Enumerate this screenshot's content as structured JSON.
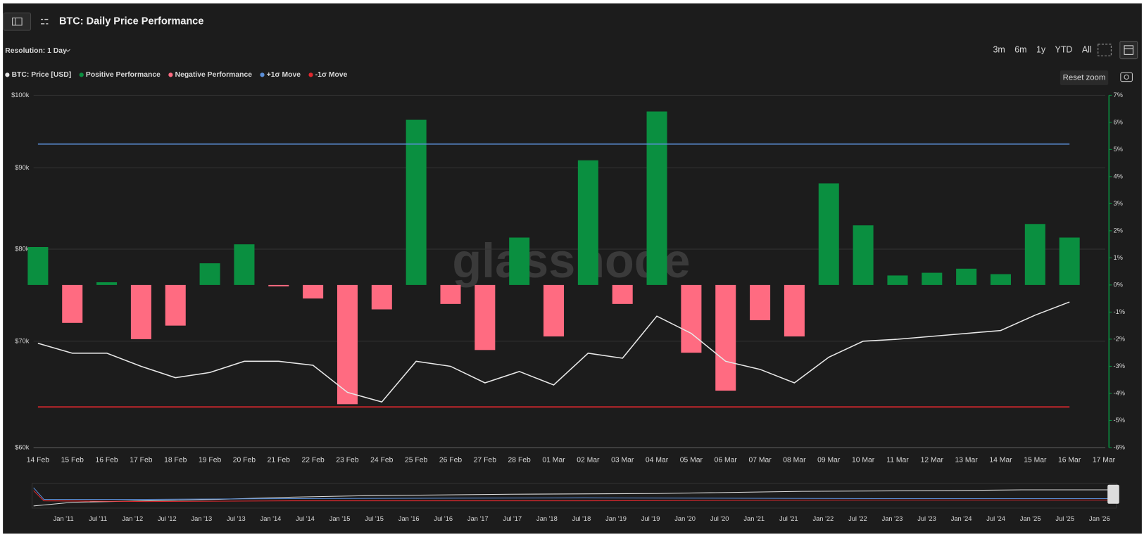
{
  "header": {
    "title": "BTC: Daily Price Performance",
    "resolution": "Resolution: 1 Day",
    "ranges": [
      "3m",
      "6m",
      "1y",
      "YTD",
      "All"
    ],
    "reset_zoom": "Reset zoom"
  },
  "watermark": "glassnode",
  "chart_data": {
    "type": "bar",
    "categories": [
      "14 Feb",
      "15 Feb",
      "16 Feb",
      "17 Feb",
      "18 Feb",
      "19 Feb",
      "20 Feb",
      "21 Feb",
      "22 Feb",
      "23 Feb",
      "24 Feb",
      "25 Feb",
      "26 Feb",
      "27 Feb",
      "28 Feb",
      "01 Mar",
      "02 Mar",
      "03 Mar",
      "04 Mar",
      "05 Mar",
      "06 Mar",
      "07 Mar",
      "08 Mar",
      "09 Mar",
      "10 Mar",
      "11 Mar",
      "12 Mar",
      "13 Mar",
      "14 Mar",
      "15 Mar",
      "16 Mar",
      "17 Mar"
    ],
    "series": [
      {
        "name": "BTC: Price [USD]",
        "type": "line",
        "axis": "y",
        "color": "#e8e8e8",
        "values": [
          69800,
          68800,
          68800,
          67500,
          66400,
          66900,
          68000,
          68000,
          67600,
          65000,
          64100,
          68000,
          67500,
          65900,
          67000,
          65700,
          68800,
          68300,
          72600,
          70800,
          68000,
          67200,
          65900,
          68400,
          70000,
          70200,
          70500,
          70800,
          71100,
          72700,
          74100,
          null
        ]
      },
      {
        "name": "Positive Performance",
        "type": "bar",
        "axis": "y2",
        "color": "#0a8f40",
        "values": [
          1.4,
          null,
          0.1,
          null,
          null,
          0.8,
          1.5,
          null,
          null,
          null,
          null,
          6.1,
          null,
          null,
          1.75,
          null,
          4.6,
          null,
          6.4,
          null,
          null,
          null,
          null,
          3.75,
          2.2,
          0.35,
          0.45,
          0.6,
          0.4,
          2.25,
          1.75,
          null
        ]
      },
      {
        "name": "Negative Performance",
        "type": "bar",
        "axis": "y2",
        "color": "#ff6b81",
        "values": [
          null,
          -1.4,
          null,
          -2.0,
          -1.5,
          null,
          null,
          -0.05,
          -0.5,
          -4.4,
          -0.9,
          null,
          -0.7,
          -2.4,
          null,
          -1.9,
          null,
          -0.7,
          null,
          -2.5,
          -3.9,
          -1.3,
          -1.9,
          null,
          null,
          null,
          null,
          null,
          null,
          null,
          null,
          null
        ]
      },
      {
        "name": "+1σ Move",
        "type": "line",
        "axis": "y2",
        "color": "#5b8fd9",
        "values": [
          5.2,
          5.2,
          5.2,
          5.2,
          5.2,
          5.2,
          5.2,
          5.2,
          5.2,
          5.2,
          5.2,
          5.2,
          5.2,
          5.2,
          5.2,
          5.2,
          5.2,
          5.2,
          5.2,
          5.2,
          5.2,
          5.2,
          5.2,
          5.2,
          5.2,
          5.2,
          5.2,
          5.2,
          5.2,
          5.2,
          5.2,
          null
        ]
      },
      {
        "name": "-1σ Move",
        "type": "line",
        "axis": "y2",
        "color": "#e0282e",
        "values": [
          -4.5,
          -4.5,
          -4.5,
          -4.5,
          -4.5,
          -4.5,
          -4.5,
          -4.5,
          -4.5,
          -4.5,
          -4.5,
          -4.5,
          -4.5,
          -4.5,
          -4.5,
          -4.5,
          -4.5,
          -4.5,
          -4.5,
          -4.5,
          -4.5,
          -4.5,
          -4.5,
          -4.5,
          -4.5,
          -4.5,
          -4.5,
          -4.5,
          -4.5,
          -4.5,
          -4.5,
          null
        ]
      }
    ],
    "ylim": [
      60000,
      100000
    ],
    "log_scale": true,
    "yticks": [
      {
        "value": 60000,
        "label": "$60k"
      },
      {
        "value": 70000,
        "label": "$70k"
      },
      {
        "value": 80000,
        "label": "$80k"
      },
      {
        "value": 90000,
        "label": "$90k"
      },
      {
        "value": 100000,
        "label": "$100k"
      }
    ],
    "y2lim": [
      -6,
      7
    ],
    "y2ticks": [
      {
        "value": -6,
        "label": "-6%"
      },
      {
        "value": -5,
        "label": "-5%"
      },
      {
        "value": -4,
        "label": "-4%"
      },
      {
        "value": -3,
        "label": "-3%"
      },
      {
        "value": -2,
        "label": "-2%"
      },
      {
        "value": -1,
        "label": "-1%"
      },
      {
        "value": 0,
        "label": "0%"
      },
      {
        "value": 1,
        "label": "1%"
      },
      {
        "value": 2,
        "label": "2%"
      },
      {
        "value": 3,
        "label": "3%"
      },
      {
        "value": 4,
        "label": "4%"
      },
      {
        "value": 5,
        "label": "5%"
      },
      {
        "value": 6,
        "label": "6%"
      },
      {
        "value": 7,
        "label": "7%"
      }
    ],
    "grid": true
  },
  "navigator": {
    "ticks": [
      "Jan '11",
      "Jul '11",
      "Jan '12",
      "Jul '12",
      "Jan '13",
      "Jul '13",
      "Jan '14",
      "Jul '14",
      "Jan '15",
      "Jul '15",
      "Jan '16",
      "Jul '16",
      "Jan '17",
      "Jul '17",
      "Jan '18",
      "Jul '18",
      "Jan '19",
      "Jul '19",
      "Jan '20",
      "Jul '20",
      "Jan '21",
      "Jul '21",
      "Jan '22",
      "Jul '22",
      "Jan '23",
      "Jul '23",
      "Jan '24",
      "Jul '24",
      "Jan '25",
      "Jul '25",
      "Jan '26"
    ]
  }
}
